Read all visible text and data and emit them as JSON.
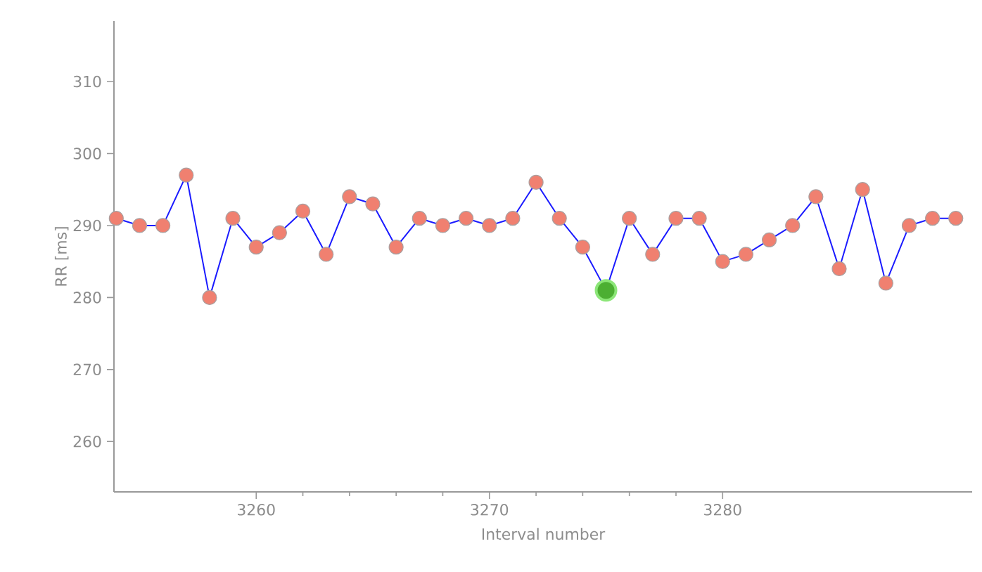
{
  "chart_data": {
    "type": "line",
    "xlabel": "Interval number",
    "ylabel": "RR [ms]",
    "x": [
      3254,
      3255,
      3256,
      3257,
      3258,
      3259,
      3260,
      3261,
      3262,
      3263,
      3264,
      3265,
      3266,
      3267,
      3268,
      3269,
      3270,
      3271,
      3272,
      3273,
      3274,
      3275,
      3276,
      3277,
      3278,
      3279,
      3280,
      3281,
      3282,
      3283,
      3284,
      3285,
      3286,
      3287,
      3288,
      3289,
      3290
    ],
    "series": [
      {
        "color": "#1a1aff",
        "marker": "circle",
        "values": [
          291,
          290,
          290,
          297,
          280,
          291,
          287,
          289,
          292,
          286,
          294,
          293,
          287,
          291,
          290,
          291,
          290,
          291,
          296,
          291,
          287,
          281,
          291,
          286,
          291,
          291,
          285,
          286,
          288,
          290,
          294,
          284,
          295,
          282,
          290,
          291,
          291
        ]
      },
      {
        "type": "scatter",
        "color": "#4caf32",
        "marker": "circle",
        "x": [
          3275
        ],
        "values": [
          281
        ]
      }
    ],
    "xlim": [
      3253.9,
      3290.7
    ],
    "ylim": [
      253,
      318.4
    ],
    "xticks": [
      3260,
      3270,
      3280
    ],
    "yticks": [
      260,
      270,
      280,
      290,
      300,
      310
    ],
    "grid": false
  }
}
